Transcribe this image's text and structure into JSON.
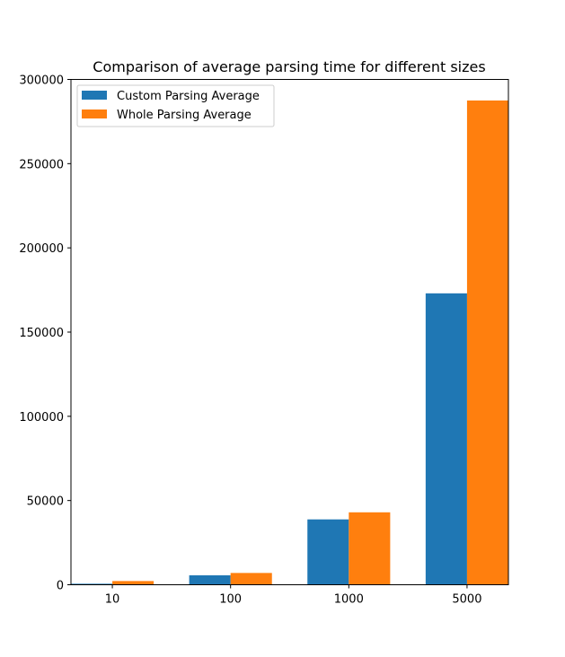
{
  "chart_data": {
    "type": "bar",
    "title": "Comparison of average parsing time for different sizes",
    "xlabel": "",
    "ylabel": "",
    "categories": [
      "10",
      "100",
      "1000",
      "5000"
    ],
    "series": [
      {
        "name": "Custom Parsing Average",
        "color": "#1f77b4",
        "values": [
          600,
          5600,
          38800,
          173000
        ]
      },
      {
        "name": "Whole Parsing Average",
        "color": "#ff7f0e",
        "values": [
          2200,
          7000,
          43000,
          287500
        ]
      }
    ],
    "ylim": [
      0,
      300000
    ],
    "yticks": [
      0,
      50000,
      100000,
      150000,
      200000,
      250000,
      300000
    ],
    "ytick_labels": [
      "0",
      "50000",
      "100000",
      "150000",
      "200000",
      "250000",
      "300000"
    ],
    "grid": false,
    "legend_position": "top-left"
  }
}
